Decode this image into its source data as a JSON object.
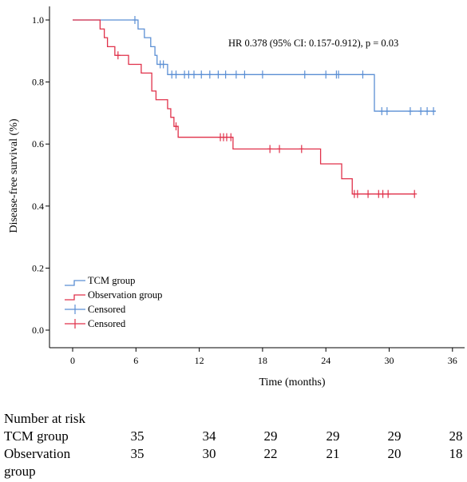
{
  "chart_data": {
    "type": "line",
    "subtype": "kaplan-meier",
    "annotation": "HR 0.378 (95% CI: 0.157-0.912), p = 0.03",
    "xlabel": "Time (months)",
    "ylabel": "Disease-free survival (%)",
    "xlim": [
      0,
      36
    ],
    "ylim": [
      0,
      1.0
    ],
    "xticks": [
      "0",
      "6",
      "12",
      "18",
      "24",
      "30",
      "36"
    ],
    "yticks": [
      "0.0",
      "0.2",
      "0.4",
      "0.6",
      "0.8",
      "1.0"
    ],
    "grid": false,
    "legend_position": "bottom-left",
    "series": [
      {
        "name": "TCM group",
        "color": "#5b8fd4",
        "steps": [
          [
            0,
            1.0
          ],
          [
            6.2,
            0.971
          ],
          [
            6.8,
            0.943
          ],
          [
            7.4,
            0.914
          ],
          [
            7.8,
            0.886
          ],
          [
            8.0,
            0.857
          ],
          [
            9.0,
            0.824
          ],
          [
            28.6,
            0.706
          ],
          [
            34.4,
            0.706
          ]
        ],
        "censored": [
          5.9,
          8.3,
          8.6,
          9.4,
          9.8,
          10.6,
          11.0,
          11.5,
          12.2,
          13.0,
          13.8,
          14.5,
          15.5,
          16.3,
          18.0,
          22.0,
          24.0,
          25.0,
          25.2,
          27.5,
          29.3,
          29.8,
          32.0,
          33.0,
          33.6,
          34.2
        ]
      },
      {
        "name": "Observation group",
        "color": "#e0314a",
        "steps": [
          [
            0,
            1.0
          ],
          [
            2.6,
            0.971
          ],
          [
            3.0,
            0.943
          ],
          [
            3.3,
            0.914
          ],
          [
            4.0,
            0.886
          ],
          [
            5.3,
            0.857
          ],
          [
            6.5,
            0.829
          ],
          [
            7.5,
            0.771
          ],
          [
            7.9,
            0.743
          ],
          [
            9.0,
            0.714
          ],
          [
            9.3,
            0.686
          ],
          [
            9.6,
            0.657
          ],
          [
            10.0,
            0.622
          ],
          [
            15.2,
            0.584
          ],
          [
            23.5,
            0.536
          ],
          [
            25.5,
            0.488
          ],
          [
            26.5,
            0.439
          ],
          [
            32.4,
            0.439
          ]
        ],
        "censored": [
          4.3,
          9.8,
          14.0,
          14.3,
          14.6,
          15.0,
          18.7,
          19.6,
          21.7,
          26.7,
          27.0,
          28.0,
          29.0,
          29.4,
          29.9,
          32.4
        ]
      }
    ],
    "legend": [
      {
        "label": "TCM group",
        "kind": "step",
        "color": "#5b8fd4"
      },
      {
        "label": "Observation group",
        "kind": "step",
        "color": "#e0314a"
      },
      {
        "label": "Censored",
        "kind": "plus",
        "color": "#5b8fd4"
      },
      {
        "label": "Censored",
        "kind": "plus",
        "color": "#e0314a"
      }
    ]
  },
  "risk_table": {
    "title": "Number at risk",
    "rows": [
      {
        "label": "TCM group",
        "values": [
          "35",
          "34",
          "29",
          "29",
          "29",
          "28"
        ]
      },
      {
        "label": "Observation",
        "label_cont": "group",
        "values": [
          "35",
          "30",
          "22",
          "21",
          "20",
          "18"
        ]
      }
    ]
  }
}
